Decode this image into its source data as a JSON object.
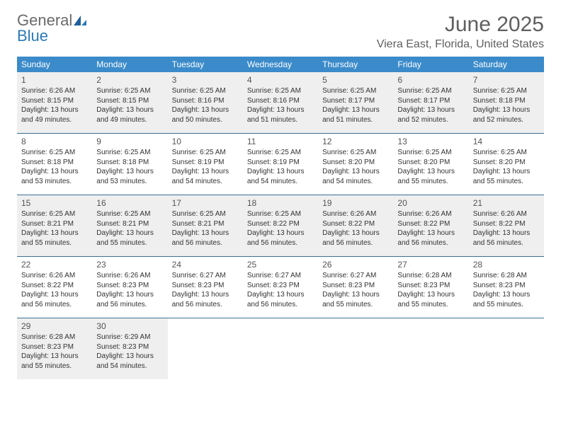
{
  "brand": {
    "part1": "General",
    "part2": "Blue"
  },
  "title": "June 2025",
  "location": "Viera East, Florida, United States",
  "colors": {
    "header_bg": "#3b8bca",
    "header_text": "#ffffff",
    "shade_bg": "#efefef",
    "row_divider": "#3b6f93",
    "logo_gray": "#6a6a6a",
    "logo_blue": "#2a7ab8",
    "title_gray": "#5f5f5f"
  },
  "day_headers": [
    "Sunday",
    "Monday",
    "Tuesday",
    "Wednesday",
    "Thursday",
    "Friday",
    "Saturday"
  ],
  "weeks": [
    {
      "shaded": true,
      "days": [
        {
          "n": "1",
          "sunrise": "Sunrise: 6:26 AM",
          "sunset": "Sunset: 8:15 PM",
          "d1": "Daylight: 13 hours",
          "d2": "and 49 minutes."
        },
        {
          "n": "2",
          "sunrise": "Sunrise: 6:25 AM",
          "sunset": "Sunset: 8:15 PM",
          "d1": "Daylight: 13 hours",
          "d2": "and 49 minutes."
        },
        {
          "n": "3",
          "sunrise": "Sunrise: 6:25 AM",
          "sunset": "Sunset: 8:16 PM",
          "d1": "Daylight: 13 hours",
          "d2": "and 50 minutes."
        },
        {
          "n": "4",
          "sunrise": "Sunrise: 6:25 AM",
          "sunset": "Sunset: 8:16 PM",
          "d1": "Daylight: 13 hours",
          "d2": "and 51 minutes."
        },
        {
          "n": "5",
          "sunrise": "Sunrise: 6:25 AM",
          "sunset": "Sunset: 8:17 PM",
          "d1": "Daylight: 13 hours",
          "d2": "and 51 minutes."
        },
        {
          "n": "6",
          "sunrise": "Sunrise: 6:25 AM",
          "sunset": "Sunset: 8:17 PM",
          "d1": "Daylight: 13 hours",
          "d2": "and 52 minutes."
        },
        {
          "n": "7",
          "sunrise": "Sunrise: 6:25 AM",
          "sunset": "Sunset: 8:18 PM",
          "d1": "Daylight: 13 hours",
          "d2": "and 52 minutes."
        }
      ]
    },
    {
      "shaded": false,
      "days": [
        {
          "n": "8",
          "sunrise": "Sunrise: 6:25 AM",
          "sunset": "Sunset: 8:18 PM",
          "d1": "Daylight: 13 hours",
          "d2": "and 53 minutes."
        },
        {
          "n": "9",
          "sunrise": "Sunrise: 6:25 AM",
          "sunset": "Sunset: 8:18 PM",
          "d1": "Daylight: 13 hours",
          "d2": "and 53 minutes."
        },
        {
          "n": "10",
          "sunrise": "Sunrise: 6:25 AM",
          "sunset": "Sunset: 8:19 PM",
          "d1": "Daylight: 13 hours",
          "d2": "and 54 minutes."
        },
        {
          "n": "11",
          "sunrise": "Sunrise: 6:25 AM",
          "sunset": "Sunset: 8:19 PM",
          "d1": "Daylight: 13 hours",
          "d2": "and 54 minutes."
        },
        {
          "n": "12",
          "sunrise": "Sunrise: 6:25 AM",
          "sunset": "Sunset: 8:20 PM",
          "d1": "Daylight: 13 hours",
          "d2": "and 54 minutes."
        },
        {
          "n": "13",
          "sunrise": "Sunrise: 6:25 AM",
          "sunset": "Sunset: 8:20 PM",
          "d1": "Daylight: 13 hours",
          "d2": "and 55 minutes."
        },
        {
          "n": "14",
          "sunrise": "Sunrise: 6:25 AM",
          "sunset": "Sunset: 8:20 PM",
          "d1": "Daylight: 13 hours",
          "d2": "and 55 minutes."
        }
      ]
    },
    {
      "shaded": true,
      "days": [
        {
          "n": "15",
          "sunrise": "Sunrise: 6:25 AM",
          "sunset": "Sunset: 8:21 PM",
          "d1": "Daylight: 13 hours",
          "d2": "and 55 minutes."
        },
        {
          "n": "16",
          "sunrise": "Sunrise: 6:25 AM",
          "sunset": "Sunset: 8:21 PM",
          "d1": "Daylight: 13 hours",
          "d2": "and 55 minutes."
        },
        {
          "n": "17",
          "sunrise": "Sunrise: 6:25 AM",
          "sunset": "Sunset: 8:21 PM",
          "d1": "Daylight: 13 hours",
          "d2": "and 56 minutes."
        },
        {
          "n": "18",
          "sunrise": "Sunrise: 6:25 AM",
          "sunset": "Sunset: 8:22 PM",
          "d1": "Daylight: 13 hours",
          "d2": "and 56 minutes."
        },
        {
          "n": "19",
          "sunrise": "Sunrise: 6:26 AM",
          "sunset": "Sunset: 8:22 PM",
          "d1": "Daylight: 13 hours",
          "d2": "and 56 minutes."
        },
        {
          "n": "20",
          "sunrise": "Sunrise: 6:26 AM",
          "sunset": "Sunset: 8:22 PM",
          "d1": "Daylight: 13 hours",
          "d2": "and 56 minutes."
        },
        {
          "n": "21",
          "sunrise": "Sunrise: 6:26 AM",
          "sunset": "Sunset: 8:22 PM",
          "d1": "Daylight: 13 hours",
          "d2": "and 56 minutes."
        }
      ]
    },
    {
      "shaded": false,
      "days": [
        {
          "n": "22",
          "sunrise": "Sunrise: 6:26 AM",
          "sunset": "Sunset: 8:22 PM",
          "d1": "Daylight: 13 hours",
          "d2": "and 56 minutes."
        },
        {
          "n": "23",
          "sunrise": "Sunrise: 6:26 AM",
          "sunset": "Sunset: 8:23 PM",
          "d1": "Daylight: 13 hours",
          "d2": "and 56 minutes."
        },
        {
          "n": "24",
          "sunrise": "Sunrise: 6:27 AM",
          "sunset": "Sunset: 8:23 PM",
          "d1": "Daylight: 13 hours",
          "d2": "and 56 minutes."
        },
        {
          "n": "25",
          "sunrise": "Sunrise: 6:27 AM",
          "sunset": "Sunset: 8:23 PM",
          "d1": "Daylight: 13 hours",
          "d2": "and 56 minutes."
        },
        {
          "n": "26",
          "sunrise": "Sunrise: 6:27 AM",
          "sunset": "Sunset: 8:23 PM",
          "d1": "Daylight: 13 hours",
          "d2": "and 55 minutes."
        },
        {
          "n": "27",
          "sunrise": "Sunrise: 6:28 AM",
          "sunset": "Sunset: 8:23 PM",
          "d1": "Daylight: 13 hours",
          "d2": "and 55 minutes."
        },
        {
          "n": "28",
          "sunrise": "Sunrise: 6:28 AM",
          "sunset": "Sunset: 8:23 PM",
          "d1": "Daylight: 13 hours",
          "d2": "and 55 minutes."
        }
      ]
    },
    {
      "shaded": true,
      "days": [
        {
          "n": "29",
          "sunrise": "Sunrise: 6:28 AM",
          "sunset": "Sunset: 8:23 PM",
          "d1": "Daylight: 13 hours",
          "d2": "and 55 minutes."
        },
        {
          "n": "30",
          "sunrise": "Sunrise: 6:29 AM",
          "sunset": "Sunset: 8:23 PM",
          "d1": "Daylight: 13 hours",
          "d2": "and 54 minutes."
        },
        {
          "n": "",
          "sunrise": "",
          "sunset": "",
          "d1": "",
          "d2": ""
        },
        {
          "n": "",
          "sunrise": "",
          "sunset": "",
          "d1": "",
          "d2": ""
        },
        {
          "n": "",
          "sunrise": "",
          "sunset": "",
          "d1": "",
          "d2": ""
        },
        {
          "n": "",
          "sunrise": "",
          "sunset": "",
          "d1": "",
          "d2": ""
        },
        {
          "n": "",
          "sunrise": "",
          "sunset": "",
          "d1": "",
          "d2": ""
        }
      ]
    }
  ]
}
